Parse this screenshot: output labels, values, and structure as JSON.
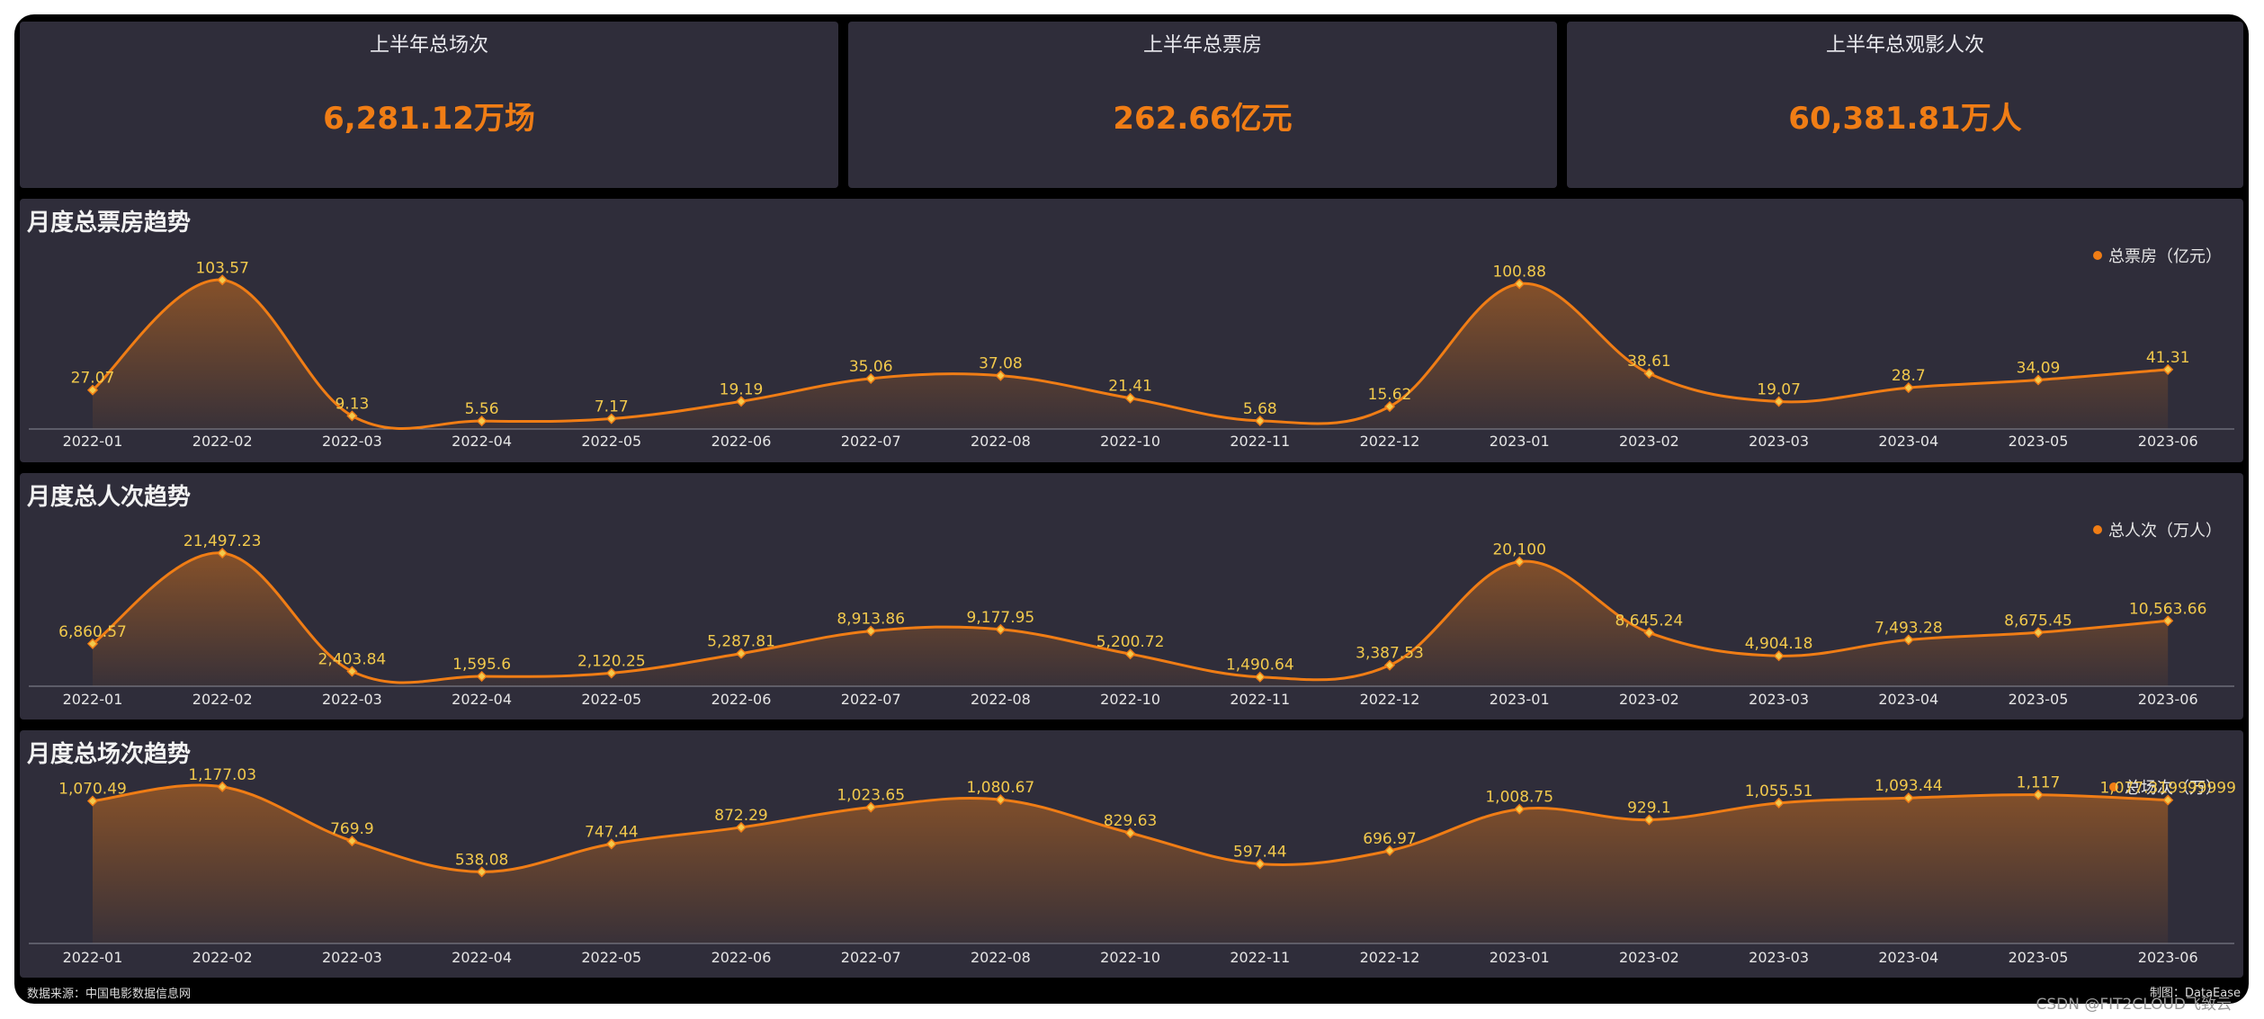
{
  "kpis": [
    {
      "title": "上半年总场次",
      "value": "6,281.12万场"
    },
    {
      "title": "上半年总票房",
      "value": "262.66亿元"
    },
    {
      "title": "上半年总观影人次",
      "value": "60,381.81万人"
    }
  ],
  "footer": {
    "source": "数据来源：中国电影数据信息网",
    "credit": "制图：DataEase",
    "watermark": "CSDN @FIT2CLOUD飞致云"
  },
  "colors": {
    "accent": "#f07d15",
    "label": "#f2c94c",
    "panel": "#2f2d3a"
  },
  "chart_data": [
    {
      "type": "area",
      "title": "月度总票房趋势",
      "legend": "总票房（亿元）",
      "legend_position": "top-right",
      "categories": [
        "2022-01",
        "2022-02",
        "2022-03",
        "2022-04",
        "2022-05",
        "2022-06",
        "2022-07",
        "2022-08",
        "2022-10",
        "2022-11",
        "2022-12",
        "2023-01",
        "2023-02",
        "2023-03",
        "2023-04",
        "2023-05",
        "2023-06"
      ],
      "values": [
        27.07,
        103.57,
        9.13,
        5.56,
        7.17,
        19.19,
        35.06,
        37.08,
        21.41,
        5.68,
        15.62,
        100.88,
        38.61,
        19.07,
        28.7,
        34.09,
        41.31
      ],
      "labels": [
        "27.07",
        "103.57",
        "9.13",
        "5.56",
        "7.17",
        "19.19",
        "35.06",
        "37.08",
        "21.41",
        "5.68",
        "15.62",
        "100.88",
        "38.61",
        "19.07",
        "28.7",
        "34.09",
        "41.31"
      ]
    },
    {
      "type": "area",
      "title": "月度总人次趋势",
      "legend": "总人次（万人）",
      "legend_position": "top-right",
      "categories": [
        "2022-01",
        "2022-02",
        "2022-03",
        "2022-04",
        "2022-05",
        "2022-06",
        "2022-07",
        "2022-08",
        "2022-10",
        "2022-11",
        "2022-12",
        "2023-01",
        "2023-02",
        "2023-03",
        "2023-04",
        "2023-05",
        "2023-06"
      ],
      "values": [
        6860.57,
        21497.23,
        2403.84,
        1595.6,
        2120.25,
        5287.81,
        8913.86,
        9177.95,
        5200.72,
        1490.64,
        3387.53,
        20100,
        8645.24,
        4904.18,
        7493.28,
        8675.45,
        10563.66
      ],
      "labels": [
        "6,860.57",
        "21,497.23",
        "2,403.84",
        "1,595.6",
        "2,120.25",
        "5,287.81",
        "8,913.86",
        "9,177.95",
        "5,200.72",
        "1,490.64",
        "3,387.53",
        "20,100",
        "8,645.24",
        "4,904.18",
        "7,493.28",
        "8,675.45",
        "10,563.66"
      ]
    },
    {
      "type": "area",
      "title": "月度总场次趋势",
      "legend": "总场次（万）",
      "legend_position": "top-right",
      "categories": [
        "2022-01",
        "2022-02",
        "2022-03",
        "2022-04",
        "2022-05",
        "2022-06",
        "2022-07",
        "2022-08",
        "2022-10",
        "2022-11",
        "2022-12",
        "2023-01",
        "2023-02",
        "2023-03",
        "2023-04",
        "2023-05",
        "2023-06"
      ],
      "values": [
        1070.49,
        1177.03,
        769.9,
        538.08,
        747.44,
        872.29,
        1023.65,
        1080.67,
        829.63,
        597.44,
        696.97,
        1008.75,
        929.1,
        1055.51,
        1093.44,
        1117,
        1077.32
      ],
      "labels": [
        "1,070.49",
        "1,177.03",
        "769.9",
        "538.08",
        "747.44",
        "872.29",
        "1,023.65",
        "1,080.67",
        "829.63",
        "597.44",
        "696.97",
        "1,008.75",
        "929.1",
        "1,055.51",
        "1,093.44",
        "1,117",
        "1,077.319999999"
      ]
    }
  ]
}
